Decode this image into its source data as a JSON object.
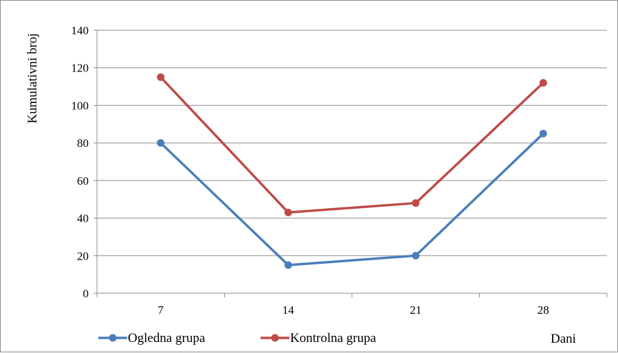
{
  "chart_data": {
    "type": "line",
    "x": [
      7,
      14,
      21,
      28
    ],
    "ylim": [
      0,
      140
    ],
    "yticks": [
      0,
      20,
      40,
      60,
      80,
      100,
      120,
      140
    ],
    "ylabel": "Kumulativni broj",
    "xlabel": "Dani",
    "grid": true,
    "legend_position": "bottom-left",
    "series": [
      {
        "name": "Ogledna grupa",
        "color": "#4a7ebb",
        "values": [
          80,
          15,
          20,
          85
        ]
      },
      {
        "name": "Kontrolna grupa",
        "color": "#be4b48",
        "values": [
          115,
          43,
          48,
          112
        ]
      }
    ]
  }
}
